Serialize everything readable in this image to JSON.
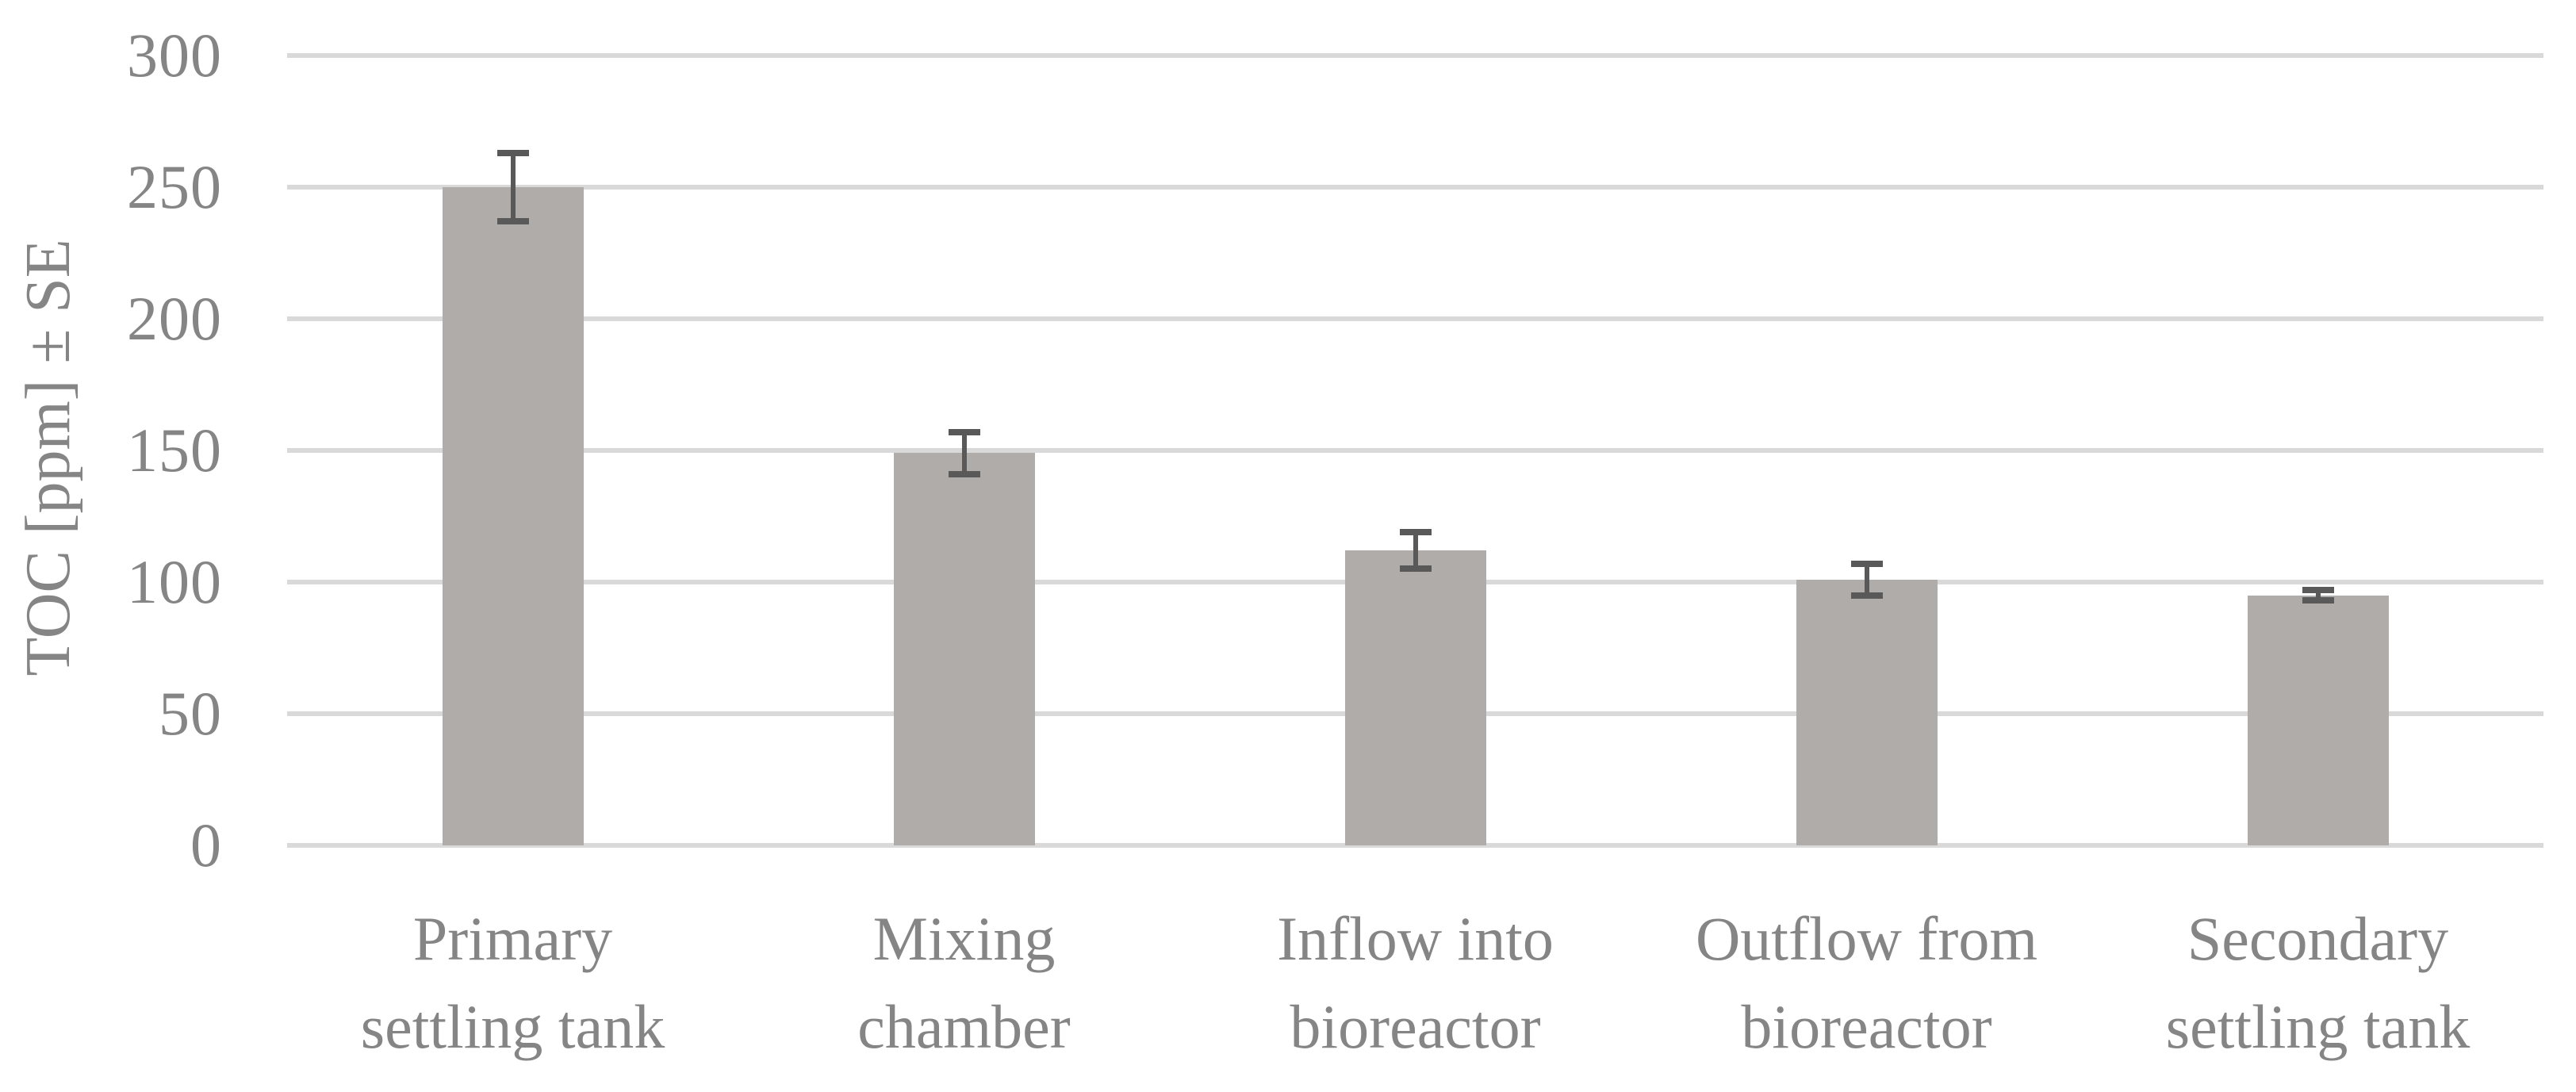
{
  "chart_data": {
    "type": "bar",
    "title": "",
    "xlabel": "",
    "ylabel": "TOC [ppm] ± SE",
    "categories": [
      "Primary settling tank",
      "Mixing chamber",
      "Inflow into bioreactor",
      "Outflow from bioreactor",
      "Secondary settling tank"
    ],
    "category_lines": [
      [
        "Primary",
        "settling tank"
      ],
      [
        "Mixing",
        "chamber"
      ],
      [
        "Inflow into",
        "bioreactor"
      ],
      [
        "Outflow from",
        "bioreactor"
      ],
      [
        "Secondary",
        "settling tank"
      ]
    ],
    "series": [
      {
        "name": "TOC",
        "values": [
          250,
          149,
          112,
          101,
          95
        ],
        "se": [
          13,
          8,
          7,
          6,
          2
        ]
      }
    ],
    "values": [
      250,
      149,
      112,
      101,
      95
    ],
    "errors_se": [
      13,
      8,
      7,
      6,
      2
    ],
    "yticks": [
      0,
      50,
      100,
      150,
      200,
      250,
      300
    ],
    "ylim": [
      0,
      300
    ],
    "grid": true,
    "legend_position": "none",
    "colors": {
      "bar": "#b0acaa",
      "error_bar": "#595959",
      "gridline": "#d9d9d9",
      "text": "#858585"
    }
  }
}
